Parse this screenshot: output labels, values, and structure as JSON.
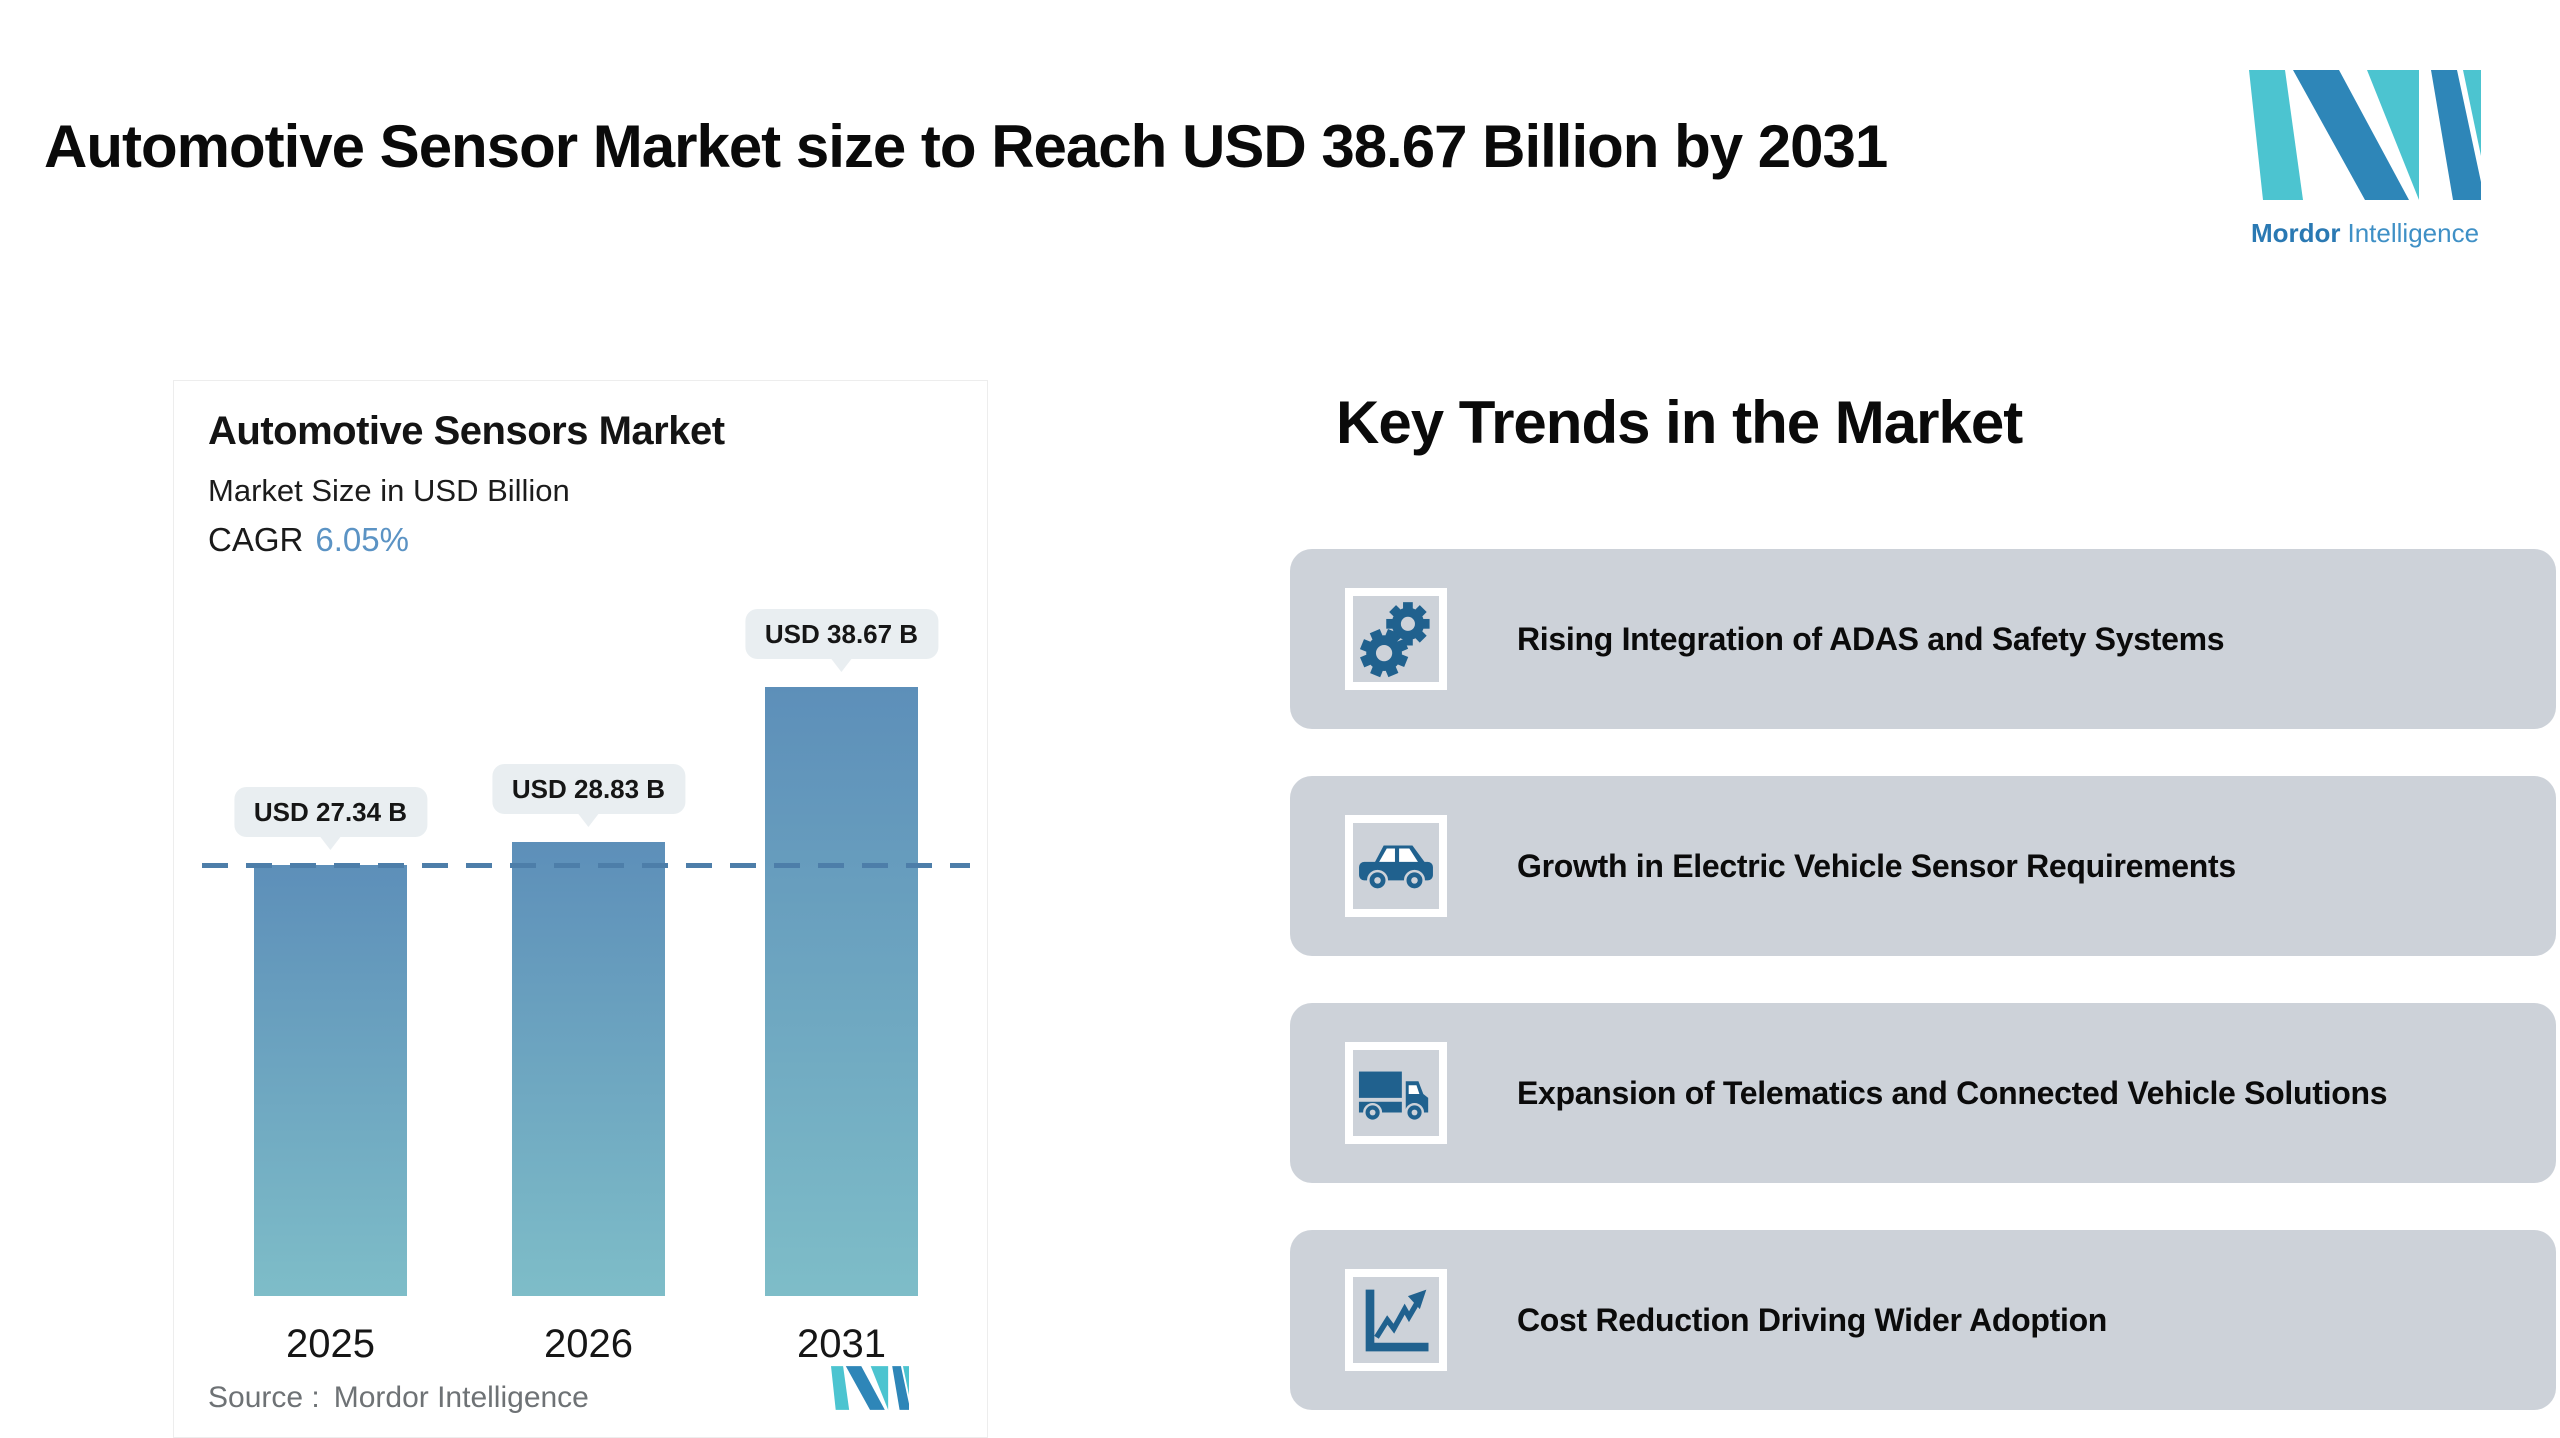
{
  "header": {
    "title": "Automotive Sensor Market size to Reach USD 38.67 Billion by 2031"
  },
  "logo": {
    "brand_bold": "Mordor",
    "brand_light": "Intelligence",
    "blue": "#2e86b8",
    "teal": "#4cc4d0"
  },
  "chart_card": {
    "title": "Automotive Sensors Market",
    "subtitle": "Market Size in USD Billion",
    "cagr_label": "CAGR",
    "cagr_value": "6.05%",
    "cagr_value_color": "#5b93c4",
    "source_label": "Source :",
    "source_value": "Mordor Intelligence"
  },
  "chart_data": {
    "type": "bar",
    "title": "Automotive Sensors Market",
    "subtitle": "Market Size in USD Billion",
    "cagr": "6.05%",
    "unit": "USD Billion",
    "categories": [
      "2025",
      "2026",
      "2031"
    ],
    "values": [
      27.34,
      28.83,
      38.67
    ],
    "value_labels": [
      "USD 27.34 B",
      "USD 28.83 B",
      "USD 38.67 B"
    ],
    "reference_line_value": 27.34,
    "reference_line_style": "dashed",
    "bar_gradient_top": "#5d8fb9",
    "bar_gradient_bottom": "#7ebdc8",
    "grid": false,
    "legend": false,
    "source": "Source : Mordor Intelligence"
  },
  "key_trends": {
    "heading": "Key Trends in the Market",
    "card_bg": "#cdd2d9",
    "icon_color": "#20618e",
    "cards": [
      {
        "icon": "gears-icon",
        "label": "Rising Integration of ADAS and Safety Systems"
      },
      {
        "icon": "car-icon",
        "label": "Growth in Electric Vehicle Sensor Requirements"
      },
      {
        "icon": "truck-icon",
        "label": "Expansion of Telematics and Connected Vehicle Solutions"
      },
      {
        "icon": "chart-icon",
        "label": "Cost Reduction Driving Wider Adoption"
      }
    ]
  }
}
